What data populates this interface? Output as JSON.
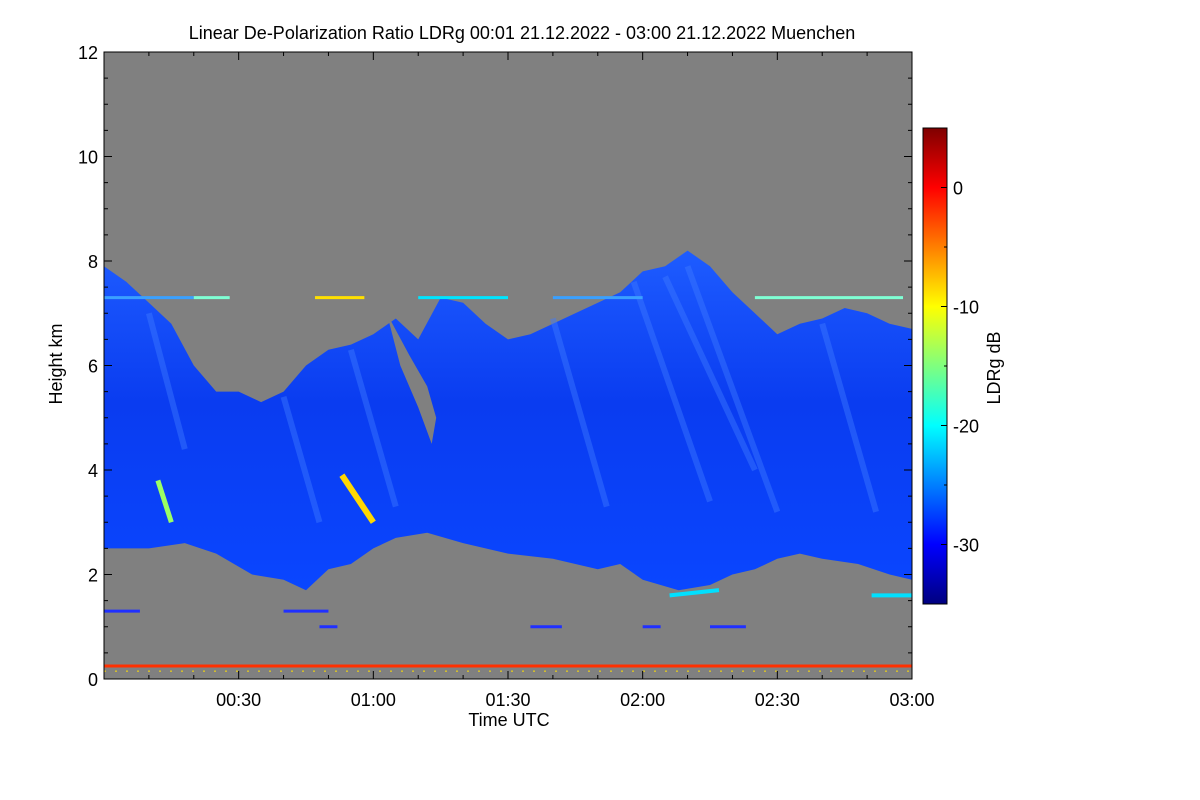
{
  "chart_data": {
    "type": "heatmap",
    "title": "Linear De-Polarization Ratio LDRg   00:01 21.12.2022 - 03:00 21.12.2022 Muenchen",
    "xlabel": "Time UTC",
    "ylabel": "Height km",
    "x_range_minutes": [
      0,
      180
    ],
    "x_ticks": [
      {
        "minute": 30,
        "label": "00:30"
      },
      {
        "minute": 60,
        "label": "01:00"
      },
      {
        "minute": 90,
        "label": "01:30"
      },
      {
        "minute": 120,
        "label": "02:00"
      },
      {
        "minute": 150,
        "label": "02:30"
      },
      {
        "minute": 180,
        "label": "03:00"
      }
    ],
    "ylim": [
      0,
      12
    ],
    "y_ticks": [
      0,
      2,
      4,
      6,
      8,
      10,
      12
    ],
    "no_data_color": "#808080",
    "colorbar": {
      "label": "LDRg dB",
      "range": [
        -35,
        5
      ],
      "ticks": [
        0,
        -10,
        -20,
        -30
      ],
      "colormap": [
        "#00007f",
        "#0000ff",
        "#007fff",
        "#00ffff",
        "#7fff7f",
        "#ffff00",
        "#ff7f00",
        "#ff0000",
        "#7f0000"
      ]
    },
    "cloud_layer": {
      "ldr_db_typical": -30,
      "base_km": [
        [
          0,
          2.5
        ],
        [
          10,
          2.5
        ],
        [
          18,
          2.6
        ],
        [
          25,
          2.4
        ],
        [
          33,
          2.0
        ],
        [
          40,
          1.9
        ],
        [
          45,
          1.7
        ],
        [
          50,
          2.1
        ],
        [
          55,
          2.2
        ],
        [
          60,
          2.5
        ],
        [
          65,
          2.7
        ],
        [
          72,
          2.8
        ],
        [
          80,
          2.6
        ],
        [
          90,
          2.4
        ],
        [
          100,
          2.3
        ],
        [
          110,
          2.1
        ],
        [
          115,
          2.2
        ],
        [
          120,
          1.9
        ],
        [
          128,
          1.7
        ],
        [
          135,
          1.8
        ],
        [
          140,
          2.0
        ],
        [
          145,
          2.1
        ],
        [
          150,
          2.3
        ],
        [
          155,
          2.4
        ],
        [
          160,
          2.3
        ],
        [
          168,
          2.2
        ],
        [
          175,
          2.0
        ],
        [
          180,
          1.9
        ]
      ],
      "top_km": [
        [
          0,
          7.9
        ],
        [
          5,
          7.6
        ],
        [
          10,
          7.2
        ],
        [
          15,
          6.8
        ],
        [
          20,
          6.0
        ],
        [
          25,
          5.5
        ],
        [
          30,
          5.5
        ],
        [
          35,
          5.3
        ],
        [
          40,
          5.5
        ],
        [
          45,
          6.0
        ],
        [
          50,
          6.3
        ],
        [
          55,
          6.4
        ],
        [
          60,
          6.6
        ],
        [
          65,
          6.9
        ],
        [
          70,
          6.5
        ],
        [
          75,
          7.3
        ],
        [
          80,
          7.2
        ],
        [
          85,
          6.8
        ],
        [
          90,
          6.5
        ],
        [
          95,
          6.6
        ],
        [
          100,
          6.8
        ],
        [
          105,
          7.0
        ],
        [
          110,
          7.2
        ],
        [
          115,
          7.4
        ],
        [
          120,
          7.8
        ],
        [
          125,
          7.9
        ],
        [
          130,
          8.2
        ],
        [
          135,
          7.9
        ],
        [
          140,
          7.4
        ],
        [
          145,
          7.0
        ],
        [
          150,
          6.6
        ],
        [
          155,
          6.8
        ],
        [
          160,
          6.9
        ],
        [
          165,
          7.1
        ],
        [
          170,
          7.0
        ],
        [
          175,
          6.8
        ],
        [
          180,
          6.7
        ]
      ]
    }
  }
}
